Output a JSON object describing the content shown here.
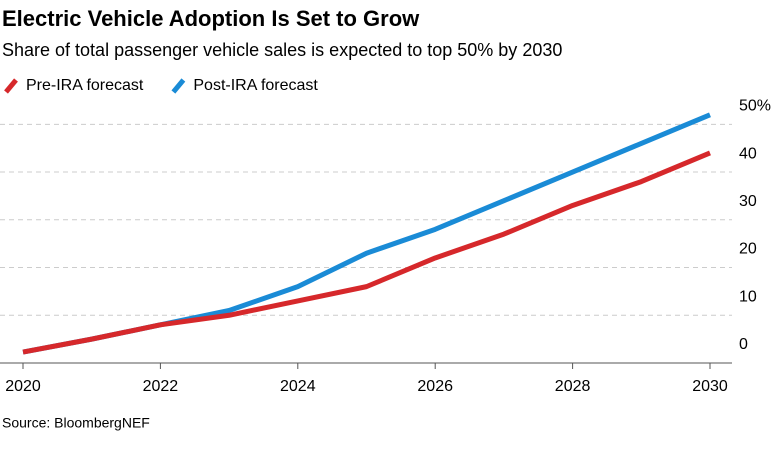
{
  "chart_data": {
    "type": "line",
    "title": "Electric Vehicle Adoption Is Set to Grow",
    "subtitle": "Share of total passenger vehicle sales is expected to top 50% by 2030",
    "source": "Source: BloombergNEF",
    "x": [
      2020,
      2021,
      2022,
      2023,
      2024,
      2025,
      2026,
      2027,
      2028,
      2029,
      2030
    ],
    "series": [
      {
        "name": "Pre-IRA forecast",
        "color": "#d6282b",
        "values": [
          2.3,
          5,
          8,
          10,
          13,
          16,
          22,
          27,
          33,
          38,
          44
        ]
      },
      {
        "name": "Post-IRA forecast",
        "color": "#1a8bd6",
        "values": [
          2.3,
          5,
          8,
          11,
          16,
          23,
          28,
          34,
          40,
          46,
          52
        ]
      }
    ],
    "xlim": [
      2020,
      2030
    ],
    "xticks": [
      2020,
      2022,
      2024,
      2026,
      2028,
      2030
    ],
    "ylim": [
      0,
      53
    ],
    "yticks": [
      0,
      10,
      20,
      30,
      40,
      {
        "value": 50,
        "label": "50%"
      }
    ],
    "grid": true
  }
}
